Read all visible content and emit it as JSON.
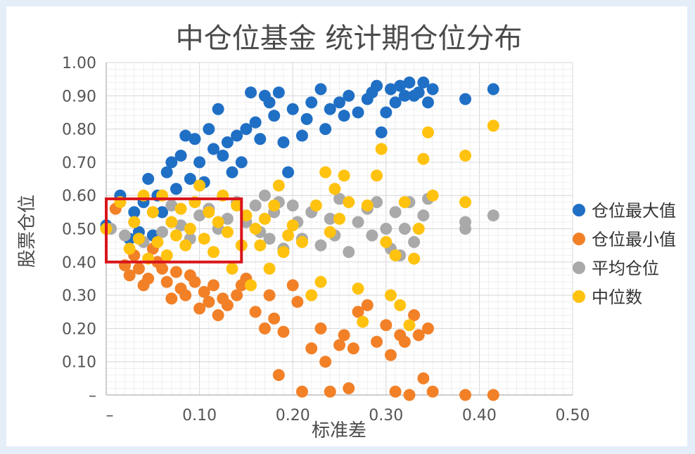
{
  "chart_data": {
    "type": "scatter",
    "title": "中仓位基金 统计期仓位分布",
    "xlabel": "标准差",
    "ylabel": "股票仓位",
    "xlim": [
      0,
      0.5
    ],
    "ylim": [
      0,
      1.0
    ],
    "x_ticks": [
      {
        "value": 0,
        "label": "–"
      },
      {
        "value": 0.1,
        "label": "0.10"
      },
      {
        "value": 0.2,
        "label": "0.20"
      },
      {
        "value": 0.3,
        "label": "0.30"
      },
      {
        "value": 0.4,
        "label": "0.40"
      },
      {
        "value": 0.5,
        "label": "0.50"
      }
    ],
    "y_ticks": [
      {
        "value": 0,
        "label": "–"
      },
      {
        "value": 0.1,
        "label": "0.10"
      },
      {
        "value": 0.2,
        "label": "0.20"
      },
      {
        "value": 0.3,
        "label": "0.30"
      },
      {
        "value": 0.4,
        "label": "0.40"
      },
      {
        "value": 0.5,
        "label": "0.50"
      },
      {
        "value": 0.6,
        "label": "0.60"
      },
      {
        "value": 0.7,
        "label": "0.70"
      },
      {
        "value": 0.8,
        "label": "0.80"
      },
      {
        "value": 0.9,
        "label": "0.90"
      },
      {
        "value": 1.0,
        "label": "1.00"
      }
    ],
    "grid": true,
    "legend_position": "right",
    "highlight_box": {
      "x0": 0.0,
      "x1": 0.145,
      "y0": 0.4,
      "y1": 0.59,
      "color": "#d9161c"
    },
    "series": [
      {
        "name": "仓位最大值",
        "color": "#1f6fc5",
        "points": [
          [
            0.0,
            0.51
          ],
          [
            0.015,
            0.6
          ],
          [
            0.025,
            0.47
          ],
          [
            0.03,
            0.55
          ],
          [
            0.035,
            0.49
          ],
          [
            0.04,
            0.58
          ],
          [
            0.045,
            0.65
          ],
          [
            0.05,
            0.48
          ],
          [
            0.055,
            0.6
          ],
          [
            0.06,
            0.55
          ],
          [
            0.065,
            0.67
          ],
          [
            0.07,
            0.7
          ],
          [
            0.075,
            0.62
          ],
          [
            0.08,
            0.72
          ],
          [
            0.085,
            0.78
          ],
          [
            0.09,
            0.65
          ],
          [
            0.095,
            0.77
          ],
          [
            0.1,
            0.7
          ],
          [
            0.105,
            0.64
          ],
          [
            0.11,
            0.8
          ],
          [
            0.115,
            0.74
          ],
          [
            0.12,
            0.86
          ],
          [
            0.125,
            0.72
          ],
          [
            0.13,
            0.76
          ],
          [
            0.135,
            0.67
          ],
          [
            0.14,
            0.78
          ],
          [
            0.145,
            0.7
          ],
          [
            0.15,
            0.8
          ],
          [
            0.155,
            0.91
          ],
          [
            0.16,
            0.82
          ],
          [
            0.165,
            0.77
          ],
          [
            0.17,
            0.9
          ],
          [
            0.175,
            0.88
          ],
          [
            0.18,
            0.84
          ],
          [
            0.185,
            0.91
          ],
          [
            0.19,
            0.76
          ],
          [
            0.195,
            0.67
          ],
          [
            0.2,
            0.86
          ],
          [
            0.21,
            0.78
          ],
          [
            0.215,
            0.83
          ],
          [
            0.22,
            0.88
          ],
          [
            0.23,
            0.92
          ],
          [
            0.235,
            0.8
          ],
          [
            0.24,
            0.86
          ],
          [
            0.25,
            0.88
          ],
          [
            0.255,
            0.84
          ],
          [
            0.26,
            0.9
          ],
          [
            0.27,
            0.85
          ],
          [
            0.28,
            0.89
          ],
          [
            0.285,
            0.91
          ],
          [
            0.29,
            0.93
          ],
          [
            0.295,
            0.79
          ],
          [
            0.3,
            0.85
          ],
          [
            0.305,
            0.92
          ],
          [
            0.31,
            0.88
          ],
          [
            0.315,
            0.93
          ],
          [
            0.32,
            0.9
          ],
          [
            0.325,
            0.94
          ],
          [
            0.33,
            0.9
          ],
          [
            0.335,
            0.91
          ],
          [
            0.34,
            0.94
          ],
          [
            0.345,
            0.88
          ],
          [
            0.35,
            0.92
          ],
          [
            0.385,
            0.89
          ],
          [
            0.415,
            0.92
          ]
        ]
      },
      {
        "name": "仓位最小值",
        "color": "#f28027",
        "points": [
          [
            0.0,
            0.5
          ],
          [
            0.01,
            0.56
          ],
          [
            0.02,
            0.39
          ],
          [
            0.025,
            0.36
          ],
          [
            0.03,
            0.42
          ],
          [
            0.035,
            0.38
          ],
          [
            0.04,
            0.33
          ],
          [
            0.045,
            0.35
          ],
          [
            0.05,
            0.44
          ],
          [
            0.055,
            0.4
          ],
          [
            0.06,
            0.38
          ],
          [
            0.065,
            0.34
          ],
          [
            0.07,
            0.29
          ],
          [
            0.075,
            0.37
          ],
          [
            0.08,
            0.32
          ],
          [
            0.085,
            0.3
          ],
          [
            0.09,
            0.36
          ],
          [
            0.095,
            0.34
          ],
          [
            0.1,
            0.26
          ],
          [
            0.105,
            0.31
          ],
          [
            0.11,
            0.28
          ],
          [
            0.115,
            0.33
          ],
          [
            0.12,
            0.24
          ],
          [
            0.125,
            0.29
          ],
          [
            0.13,
            0.27
          ],
          [
            0.14,
            0.3
          ],
          [
            0.145,
            0.33
          ],
          [
            0.15,
            0.35
          ],
          [
            0.16,
            0.25
          ],
          [
            0.17,
            0.2
          ],
          [
            0.175,
            0.3
          ],
          [
            0.18,
            0.23
          ],
          [
            0.185,
            0.06
          ],
          [
            0.19,
            0.19
          ],
          [
            0.2,
            0.33
          ],
          [
            0.205,
            0.28
          ],
          [
            0.21,
            0.01
          ],
          [
            0.22,
            0.14
          ],
          [
            0.23,
            0.2
          ],
          [
            0.235,
            0.1
          ],
          [
            0.24,
            0.01
          ],
          [
            0.25,
            0.15
          ],
          [
            0.255,
            0.18
          ],
          [
            0.26,
            0.02
          ],
          [
            0.265,
            0.14
          ],
          [
            0.27,
            0.25
          ],
          [
            0.28,
            0.27
          ],
          [
            0.29,
            0.16
          ],
          [
            0.3,
            0.21
          ],
          [
            0.305,
            0.12
          ],
          [
            0.31,
            0.01
          ],
          [
            0.315,
            0.18
          ],
          [
            0.32,
            0.16
          ],
          [
            0.325,
            0.0
          ],
          [
            0.33,
            0.24
          ],
          [
            0.335,
            0.18
          ],
          [
            0.34,
            0.05
          ],
          [
            0.345,
            0.2
          ],
          [
            0.35,
            0.01
          ],
          [
            0.385,
            0.0
          ],
          [
            0.415,
            0.0
          ]
        ]
      },
      {
        "name": "平均仓位",
        "color": "#a9a9a9",
        "points": [
          [
            0.005,
            0.5
          ],
          [
            0.02,
            0.48
          ],
          [
            0.03,
            0.52
          ],
          [
            0.04,
            0.46
          ],
          [
            0.05,
            0.55
          ],
          [
            0.06,
            0.49
          ],
          [
            0.07,
            0.57
          ],
          [
            0.08,
            0.51
          ],
          [
            0.09,
            0.47
          ],
          [
            0.1,
            0.54
          ],
          [
            0.11,
            0.56
          ],
          [
            0.12,
            0.5
          ],
          [
            0.13,
            0.53
          ],
          [
            0.14,
            0.58
          ],
          [
            0.15,
            0.52
          ],
          [
            0.16,
            0.57
          ],
          [
            0.165,
            0.49
          ],
          [
            0.17,
            0.6
          ],
          [
            0.175,
            0.47
          ],
          [
            0.18,
            0.55
          ],
          [
            0.185,
            0.58
          ],
          [
            0.19,
            0.44
          ],
          [
            0.2,
            0.57
          ],
          [
            0.205,
            0.52
          ],
          [
            0.21,
            0.47
          ],
          [
            0.22,
            0.55
          ],
          [
            0.23,
            0.45
          ],
          [
            0.24,
            0.53
          ],
          [
            0.245,
            0.48
          ],
          [
            0.25,
            0.59
          ],
          [
            0.26,
            0.43
          ],
          [
            0.27,
            0.52
          ],
          [
            0.28,
            0.56
          ],
          [
            0.285,
            0.48
          ],
          [
            0.29,
            0.58
          ],
          [
            0.3,
            0.5
          ],
          [
            0.305,
            0.44
          ],
          [
            0.31,
            0.55
          ],
          [
            0.315,
            0.42
          ],
          [
            0.32,
            0.5
          ],
          [
            0.325,
            0.58
          ],
          [
            0.33,
            0.46
          ],
          [
            0.34,
            0.54
          ],
          [
            0.345,
            0.59
          ],
          [
            0.385,
            0.5
          ],
          [
            0.385,
            0.52
          ],
          [
            0.415,
            0.54
          ]
        ]
      },
      {
        "name": "中位数",
        "color": "#ffc20e",
        "points": [
          [
            0.0,
            0.5
          ],
          [
            0.015,
            0.58
          ],
          [
            0.025,
            0.44
          ],
          [
            0.03,
            0.52
          ],
          [
            0.035,
            0.47
          ],
          [
            0.04,
            0.6
          ],
          [
            0.045,
            0.41
          ],
          [
            0.05,
            0.55
          ],
          [
            0.055,
            0.46
          ],
          [
            0.06,
            0.6
          ],
          [
            0.065,
            0.42
          ],
          [
            0.07,
            0.52
          ],
          [
            0.075,
            0.48
          ],
          [
            0.08,
            0.56
          ],
          [
            0.085,
            0.45
          ],
          [
            0.09,
            0.5
          ],
          [
            0.095,
            0.58
          ],
          [
            0.1,
            0.63
          ],
          [
            0.105,
            0.47
          ],
          [
            0.11,
            0.55
          ],
          [
            0.115,
            0.43
          ],
          [
            0.12,
            0.52
          ],
          [
            0.125,
            0.6
          ],
          [
            0.13,
            0.49
          ],
          [
            0.135,
            0.38
          ],
          [
            0.14,
            0.57
          ],
          [
            0.145,
            0.45
          ],
          [
            0.15,
            0.54
          ],
          [
            0.155,
            0.33
          ],
          [
            0.16,
            0.5
          ],
          [
            0.165,
            0.45
          ],
          [
            0.17,
            0.53
          ],
          [
            0.175,
            0.38
          ],
          [
            0.18,
            0.57
          ],
          [
            0.185,
            0.63
          ],
          [
            0.19,
            0.43
          ],
          [
            0.195,
            0.48
          ],
          [
            0.2,
            0.51
          ],
          [
            0.21,
            0.46
          ],
          [
            0.22,
            0.3
          ],
          [
            0.225,
            0.57
          ],
          [
            0.23,
            0.34
          ],
          [
            0.235,
            0.67
          ],
          [
            0.24,
            0.49
          ],
          [
            0.245,
            0.62
          ],
          [
            0.25,
            0.53
          ],
          [
            0.255,
            0.66
          ],
          [
            0.26,
            0.58
          ],
          [
            0.27,
            0.32
          ],
          [
            0.275,
            0.22
          ],
          [
            0.28,
            0.57
          ],
          [
            0.29,
            0.66
          ],
          [
            0.295,
            0.74
          ],
          [
            0.3,
            0.46
          ],
          [
            0.305,
            0.3
          ],
          [
            0.31,
            0.42
          ],
          [
            0.315,
            0.27
          ],
          [
            0.32,
            0.58
          ],
          [
            0.325,
            0.21
          ],
          [
            0.33,
            0.41
          ],
          [
            0.335,
            0.5
          ],
          [
            0.34,
            0.71
          ],
          [
            0.345,
            0.79
          ],
          [
            0.35,
            0.6
          ],
          [
            0.385,
            0.72
          ],
          [
            0.385,
            0.58
          ],
          [
            0.415,
            0.81
          ]
        ]
      }
    ]
  }
}
